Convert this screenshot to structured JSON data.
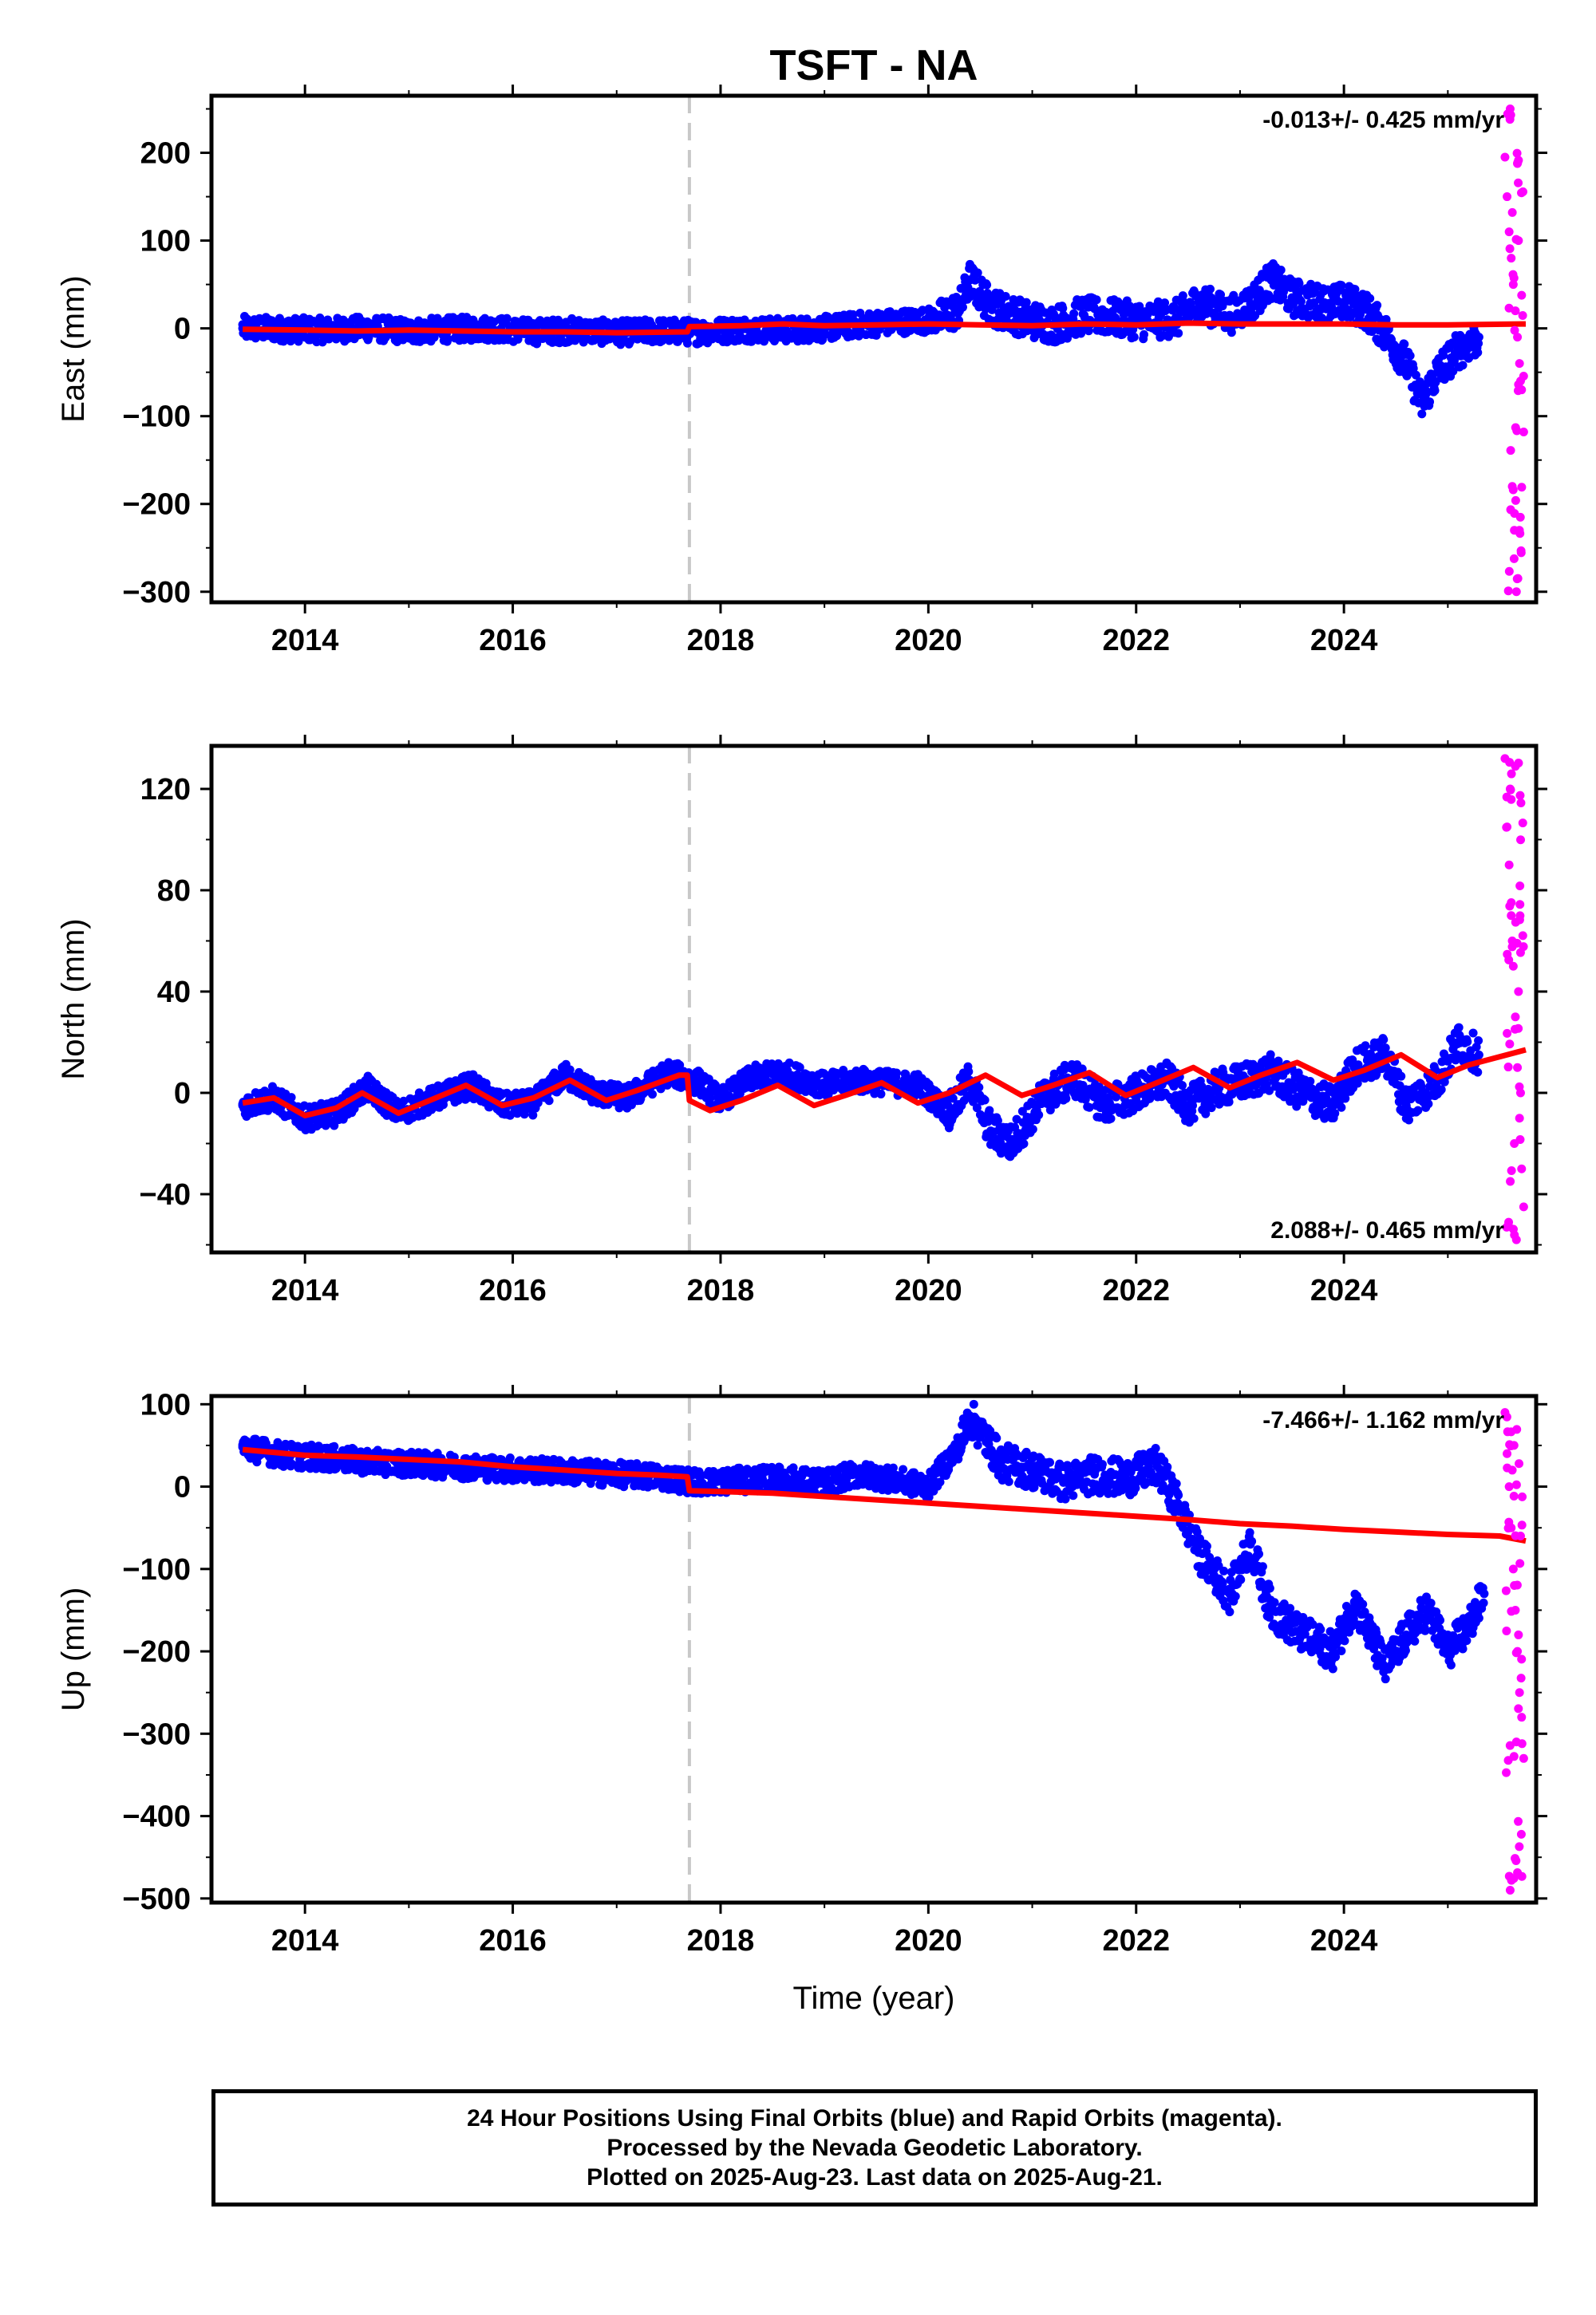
{
  "title": "TSFT - NA",
  "xlabel": "Time (year)",
  "footer": {
    "line1": "24 Hour Positions Using Final Orbits (blue) and Rapid Orbits (magenta).",
    "line2": "Processed by the Nevada Geodetic Laboratory.",
    "line3": "Plotted on 2025-Aug-23. Last data on 2025-Aug-21."
  },
  "colors": {
    "final": "#0000ff",
    "rapid": "#ff00ff",
    "model": "#ff0000",
    "event": "#c8c8c8"
  },
  "chart_data": [
    {
      "type": "scatter",
      "ylabel": "East (mm)",
      "rate": "-0.013+/- 0.425 mm/yr",
      "rate_position": "top-right",
      "xlim": [
        2013.1,
        2025.85
      ],
      "ylim": [
        -312,
        265
      ],
      "yticks": [
        200,
        100,
        0,
        -100,
        -200,
        -300
      ],
      "ytick_labels": [
        "200",
        "100",
        "0",
        "−100",
        "−200",
        "−300"
      ],
      "xticks": [
        2014,
        2016,
        2018,
        2020,
        2022,
        2024
      ],
      "event_line": 2017.7,
      "series": [
        {
          "role": "final",
          "x": [
            2013.4,
            2013.8,
            2014.2,
            2014.6,
            2015.0,
            2015.4,
            2015.8,
            2016.2,
            2016.6,
            2017.0,
            2017.4,
            2017.8,
            2018.2,
            2018.6,
            2019.0,
            2019.4,
            2019.8,
            2020.1,
            2020.3,
            2020.4,
            2020.6,
            2020.9,
            2021.2,
            2021.5,
            2021.8,
            2022.1,
            2022.4,
            2022.6,
            2022.9,
            2023.1,
            2023.3,
            2023.5,
            2023.8,
            2024.0,
            2024.2,
            2024.4,
            2024.6,
            2024.75,
            2024.9,
            2025.1,
            2025.3
          ],
          "y": [
            0,
            -1,
            -2,
            0,
            -3,
            -1,
            0,
            -4,
            -2,
            -5,
            -3,
            -4,
            -1,
            -2,
            0,
            5,
            8,
            10,
            22,
            55,
            25,
            12,
            4,
            15,
            12,
            8,
            12,
            30,
            15,
            28,
            55,
            35,
            28,
            30,
            22,
            -5,
            -40,
            -85,
            -50,
            -25,
            -10
          ]
        },
        {
          "role": "rapid",
          "x": [
            2025.55,
            2025.57,
            2025.59,
            2025.61,
            2025.63,
            2025.65,
            2025.67,
            2025.69,
            2025.71,
            2025.73,
            2025.6,
            2025.62,
            2025.64,
            2025.66,
            2025.68,
            2025.7
          ],
          "y": [
            195,
            150,
            110,
            80,
            50,
            20,
            -10,
            -40,
            -70,
            -118,
            250,
            -180,
            -230,
            -300,
            100,
            -60
          ]
        },
        {
          "role": "model",
          "x": [
            2013.4,
            2014.0,
            2014.5,
            2015.0,
            2015.5,
            2016.0,
            2016.5,
            2017.0,
            2017.68,
            2017.7,
            2018.2,
            2018.6,
            2019.0,
            2019.5,
            2020.0,
            2020.5,
            2021.0,
            2021.5,
            2022.0,
            2022.5,
            2023.0,
            2023.5,
            2024.0,
            2024.5,
            2025.0,
            2025.75
          ],
          "y": [
            -1,
            -2,
            -3,
            -2,
            -3,
            -4,
            -4,
            -5,
            -4,
            2,
            3,
            5,
            3,
            4,
            5,
            4,
            3,
            5,
            4,
            6,
            5,
            5,
            5,
            4,
            4,
            5
          ]
        }
      ]
    },
    {
      "type": "scatter",
      "ylabel": "North (mm)",
      "rate": "2.088+/- 0.465 mm/yr",
      "rate_position": "bottom-right",
      "xlim": [
        2013.1,
        2025.85
      ],
      "ylim": [
        -63,
        137
      ],
      "yticks": [
        120,
        80,
        40,
        0,
        -40
      ],
      "ytick_labels": [
        "120",
        "80",
        "40",
        "0",
        "−40"
      ],
      "xticks": [
        2014,
        2016,
        2018,
        2020,
        2022,
        2024
      ],
      "event_line": 2017.7,
      "series": [
        {
          "role": "final",
          "x": [
            2013.4,
            2013.7,
            2014.0,
            2014.3,
            2014.6,
            2014.9,
            2015.2,
            2015.6,
            2015.9,
            2016.2,
            2016.5,
            2016.8,
            2017.1,
            2017.5,
            2017.8,
            2018.0,
            2018.3,
            2018.6,
            2019.0,
            2019.3,
            2019.6,
            2019.9,
            2020.2,
            2020.4,
            2020.6,
            2020.8,
            2021.1,
            2021.4,
            2021.7,
            2022.0,
            2022.3,
            2022.5,
            2022.8,
            2023.0,
            2023.3,
            2023.6,
            2023.9,
            2024.1,
            2024.4,
            2024.6,
            2024.9,
            2025.1,
            2025.3
          ],
          "y": [
            -5,
            -2,
            -10,
            -8,
            2,
            -8,
            -3,
            3,
            -5,
            -4,
            7,
            0,
            -2,
            8,
            4,
            -3,
            6,
            8,
            3,
            5,
            4,
            3,
            -8,
            5,
            -15,
            -20,
            -2,
            6,
            -5,
            0,
            5,
            -5,
            2,
            4,
            8,
            0,
            -5,
            10,
            15,
            -5,
            5,
            20,
            15
          ]
        },
        {
          "role": "rapid",
          "x": [
            2025.55,
            2025.57,
            2025.59,
            2025.61,
            2025.63,
            2025.65,
            2025.67,
            2025.69,
            2025.71,
            2025.73,
            2025.6,
            2025.62,
            2025.64,
            2025.66,
            2025.68,
            2025.7
          ],
          "y": [
            132,
            105,
            90,
            70,
            50,
            30,
            10,
            -10,
            -30,
            -45,
            120,
            60,
            -20,
            -58,
            40,
            0
          ]
        },
        {
          "role": "model",
          "x": [
            2013.4,
            2013.7,
            2014.0,
            2014.3,
            2014.55,
            2014.9,
            2015.2,
            2015.55,
            2015.9,
            2016.2,
            2016.55,
            2016.9,
            2017.2,
            2017.6,
            2017.68,
            2017.7,
            2017.9,
            2018.2,
            2018.55,
            2018.9,
            2019.2,
            2019.55,
            2019.9,
            2020.2,
            2020.55,
            2020.9,
            2021.2,
            2021.55,
            2021.9,
            2022.2,
            2022.55,
            2022.9,
            2023.2,
            2023.55,
            2023.9,
            2024.2,
            2024.55,
            2024.9,
            2025.2,
            2025.75
          ],
          "y": [
            -4,
            -2,
            -9,
            -6,
            0,
            -8,
            -3,
            3,
            -5,
            -2,
            5,
            -3,
            1,
            7,
            7,
            -3,
            -7,
            -3,
            3,
            -5,
            -1,
            4,
            -4,
            0,
            7,
            -1,
            3,
            8,
            -1,
            4,
            10,
            2,
            7,
            12,
            5,
            9,
            15,
            6,
            11,
            17
          ]
        }
      ]
    },
    {
      "type": "scatter",
      "ylabel": "Up (mm)",
      "rate": "-7.466+/- 1.162 mm/yr",
      "rate_position": "top-right",
      "xlim": [
        2013.1,
        2025.85
      ],
      "ylim": [
        -505,
        110
      ],
      "yticks": [
        100,
        0,
        -100,
        -200,
        -300,
        -400,
        -500
      ],
      "ytick_labels": [
        "100",
        "0",
        "−100",
        "−200",
        "−300",
        "−400",
        "−500"
      ],
      "xticks": [
        2014,
        2016,
        2018,
        2020,
        2022,
        2024
      ],
      "event_line": 2017.7,
      "series": [
        {
          "role": "final",
          "x": [
            2013.4,
            2013.8,
            2014.2,
            2014.6,
            2015.0,
            2015.4,
            2015.8,
            2016.2,
            2016.6,
            2017.0,
            2017.4,
            2017.8,
            2018.2,
            2018.6,
            2019.0,
            2019.3,
            2019.6,
            2020.0,
            2020.3,
            2020.4,
            2020.7,
            2021.0,
            2021.3,
            2021.6,
            2021.9,
            2022.2,
            2022.4,
            2022.6,
            2022.9,
            2023.1,
            2023.3,
            2023.6,
            2023.9,
            2024.1,
            2024.4,
            2024.6,
            2024.8,
            2025.0,
            2025.2,
            2025.35
          ],
          "y": [
            48,
            38,
            35,
            30,
            28,
            25,
            22,
            20,
            18,
            15,
            12,
            5,
            8,
            10,
            5,
            15,
            10,
            0,
            50,
            85,
            30,
            20,
            5,
            15,
            10,
            25,
            -20,
            -80,
            -130,
            -70,
            -150,
            -180,
            -200,
            -140,
            -220,
            -180,
            -150,
            -200,
            -170,
            -130
          ]
        },
        {
          "role": "rapid",
          "x": [
            2025.55,
            2025.57,
            2025.59,
            2025.61,
            2025.63,
            2025.65,
            2025.67,
            2025.69,
            2025.71,
            2025.73,
            2025.6,
            2025.62,
            2025.64,
            2025.66,
            2025.68,
            2025.7
          ],
          "y": [
            90,
            40,
            0,
            -50,
            -100,
            -150,
            -200,
            -250,
            -280,
            -330,
            -490,
            20,
            -120,
            -310,
            -180,
            -60
          ]
        },
        {
          "role": "model",
          "x": [
            2013.4,
            2014.0,
            2014.5,
            2015.0,
            2015.5,
            2016.0,
            2016.5,
            2017.0,
            2017.4,
            2017.68,
            2017.7,
            2018.0,
            2018.5,
            2019.0,
            2019.5,
            2020.0,
            2020.5,
            2021.0,
            2021.5,
            2022.0,
            2022.5,
            2023.0,
            2023.5,
            2024.0,
            2024.5,
            2025.0,
            2025.5,
            2025.75
          ],
          "y": [
            45,
            38,
            36,
            33,
            30,
            24,
            20,
            16,
            14,
            12,
            -5,
            -6,
            -8,
            -12,
            -16,
            -20,
            -24,
            -28,
            -32,
            -36,
            -40,
            -45,
            -48,
            -52,
            -55,
            -58,
            -60,
            -66
          ]
        }
      ]
    }
  ]
}
